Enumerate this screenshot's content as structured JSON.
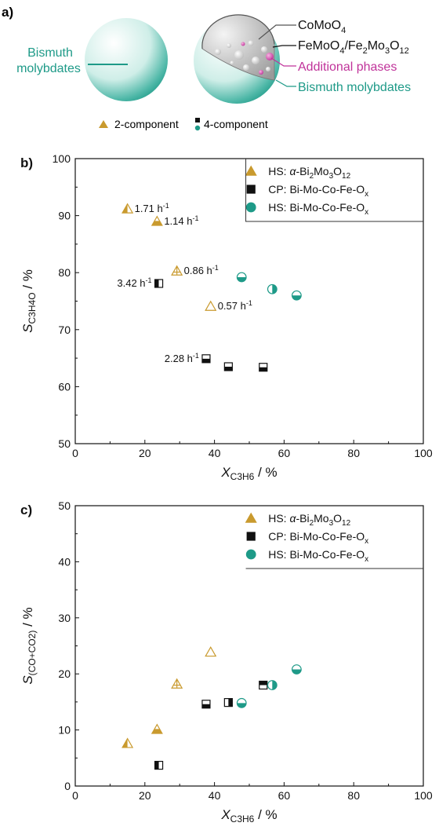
{
  "colors": {
    "gold": "#c99a2e",
    "teal": "#1e9a88",
    "magenta": "#c0339a",
    "black": "#111111",
    "text": "#111111"
  },
  "panel_a": {
    "panel_label": "a)",
    "left_sphere_label": [
      "Bismuth",
      "molybdates"
    ],
    "right_sphere_labels": {
      "comoo4": [
        "CoMoO",
        "4"
      ],
      "femoo4": [
        "FeMoO",
        "4",
        "/Fe",
        "2",
        "Mo",
        "3",
        "O",
        "12"
      ],
      "additional": "Additional phases",
      "bismuth": "Bismuth molybdates"
    },
    "legend": {
      "two_component": "2-component",
      "four_component": "4-component"
    }
  },
  "legend_entries": [
    {
      "marker": "gold-triangle",
      "parts": [
        "HS: ",
        "α",
        "-Bi",
        "2",
        "Mo",
        "3",
        "O",
        "12"
      ]
    },
    {
      "marker": "black-square",
      "parts": [
        "CP: Bi-Mo-Co-Fe-O",
        "x"
      ]
    },
    {
      "marker": "teal-circle",
      "parts": [
        "HS: Bi-Mo-Co-Fe-O",
        "x"
      ]
    }
  ],
  "chart_data": [
    {
      "panel_label": "b)",
      "type": "scatter",
      "xlabel": {
        "main": "X",
        "sub": "C3H6",
        "unit": " / %"
      },
      "ylabel": {
        "main": "S",
        "sub": "C3H4O",
        "unit": " / %"
      },
      "xlim": [
        0,
        100
      ],
      "ylim": [
        50,
        100
      ],
      "xticks": [
        0,
        20,
        40,
        60,
        80,
        100
      ],
      "yticks": [
        50,
        60,
        70,
        80,
        90,
        100
      ],
      "legend_position": "top-right",
      "series": [
        {
          "name": "HS: α-Bi2Mo3O12",
          "marker": "triangle",
          "color": "#c99a2e",
          "points": [
            {
              "x": 15,
              "y": 91.2,
              "fill": "left",
              "label": "1.71 h",
              "label_sup": "-1",
              "label_side": "right"
            },
            {
              "x": 23.5,
              "y": 89,
              "fill": "bottom",
              "label": "1.14 h",
              "label_sup": "-1",
              "label_side": "right"
            },
            {
              "x": 29.2,
              "y": 80.3,
              "fill": "cross",
              "label": "0.86 h",
              "label_sup": "-1",
              "label_side": "right"
            },
            {
              "x": 38.9,
              "y": 74.1,
              "fill": "none",
              "label": "0.57 h",
              "label_sup": "-1",
              "label_side": "right"
            }
          ]
        },
        {
          "name": "CP: Bi-Mo-Co-Fe-Ox",
          "marker": "square",
          "color": "#111111",
          "points": [
            {
              "x": 24,
              "y": 78.1,
              "fill": "left",
              "label": "3.42 h",
              "label_sup": "-1",
              "label_side": "left"
            },
            {
              "x": 37.6,
              "y": 64.9,
              "fill": "bottom",
              "label": "2.28 h",
              "label_sup": "-1",
              "label_side": "left"
            },
            {
              "x": 44,
              "y": 63.5,
              "fill": "bottom"
            },
            {
              "x": 54,
              "y": 63.4,
              "fill": "bottom"
            }
          ]
        },
        {
          "name": "HS: Bi-Mo-Co-Fe-Ox",
          "marker": "circle",
          "color": "#1e9a88",
          "points": [
            {
              "x": 47.8,
              "y": 79.2,
              "fill": "bottom"
            },
            {
              "x": 56.6,
              "y": 77.1,
              "fill": "right"
            },
            {
              "x": 63.6,
              "y": 76,
              "fill": "bottom"
            }
          ]
        }
      ]
    },
    {
      "panel_label": "c)",
      "type": "scatter",
      "xlabel": {
        "main": "X",
        "sub": "C3H6",
        "unit": " / %"
      },
      "ylabel": {
        "main": "S",
        "sub": "(CO+CO2)",
        "unit": " / %"
      },
      "xlim": [
        0,
        100
      ],
      "ylim": [
        0,
        50
      ],
      "xticks": [
        0,
        20,
        40,
        60,
        80,
        100
      ],
      "yticks": [
        0,
        10,
        20,
        30,
        40,
        50
      ],
      "legend_position": "top-right",
      "series": [
        {
          "name": "HS: α-Bi2Mo3O12",
          "marker": "triangle",
          "color": "#c99a2e",
          "points": [
            {
              "x": 15,
              "y": 7.6,
              "fill": "left"
            },
            {
              "x": 23.5,
              "y": 10.1,
              "fill": "bottom"
            },
            {
              "x": 29.2,
              "y": 18.2,
              "fill": "cross"
            },
            {
              "x": 38.9,
              "y": 23.9,
              "fill": "none"
            }
          ]
        },
        {
          "name": "CP: Bi-Mo-Co-Fe-Ox",
          "marker": "square",
          "color": "#111111",
          "points": [
            {
              "x": 24,
              "y": 3.7,
              "fill": "left"
            },
            {
              "x": 37.6,
              "y": 14.6,
              "fill": "bottom"
            },
            {
              "x": 44,
              "y": 14.9,
              "fill": "right"
            },
            {
              "x": 54,
              "y": 18,
              "fill": "top"
            }
          ]
        },
        {
          "name": "HS: Bi-Mo-Co-Fe-Ox",
          "marker": "circle",
          "color": "#1e9a88",
          "points": [
            {
              "x": 47.8,
              "y": 14.8,
              "fill": "bottom"
            },
            {
              "x": 56.6,
              "y": 18,
              "fill": "right"
            },
            {
              "x": 63.6,
              "y": 20.8,
              "fill": "bottom"
            }
          ]
        }
      ]
    }
  ]
}
